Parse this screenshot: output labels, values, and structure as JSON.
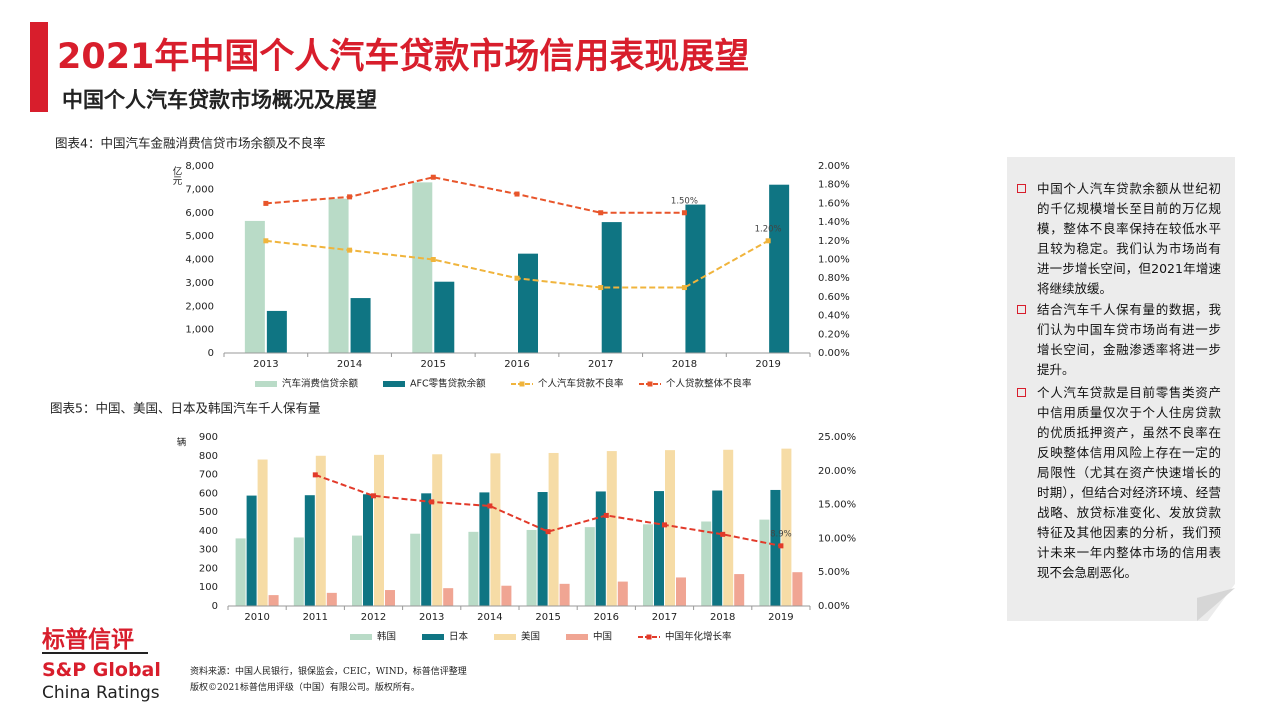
{
  "header": {
    "title": "2021年中国个人汽车贷款市场信用表现展望",
    "subtitle": "中国个人汽车贷款市场概况及展望"
  },
  "chart_data": [
    {
      "type": "bar",
      "title": "图表4：中国汽车金融消费信贷市场余额及不良率",
      "y_label": "亿元",
      "categories": [
        "2013",
        "2014",
        "2015",
        "2016",
        "2017",
        "2018",
        "2019"
      ],
      "series": [
        {
          "name": "汽车消费信贷余额",
          "type": "bar",
          "color": "#b9dbc7",
          "values": [
            5650,
            6600,
            7300,
            null,
            null,
            null,
            null
          ]
        },
        {
          "name": "AFC零售贷款余额",
          "type": "bar",
          "color": "#0f7583",
          "values": [
            1800,
            2350,
            3050,
            4250,
            5600,
            6350,
            7200
          ]
        },
        {
          "name": "个人汽车贷款不良率",
          "type": "line",
          "axis": "y2",
          "dashed": true,
          "color": "#f0b43c",
          "values": [
            1.2,
            1.1,
            1.0,
            0.8,
            0.7,
            0.7,
            1.2
          ],
          "value_labels": [
            null,
            null,
            null,
            null,
            null,
            null,
            "1.20%"
          ]
        },
        {
          "name": "个人贷款整体不良率",
          "type": "line",
          "axis": "y2",
          "dashed": true,
          "color": "#e8552b",
          "values": [
            1.6,
            1.67,
            1.88,
            1.7,
            1.5,
            1.5,
            null
          ],
          "value_labels": [
            null,
            null,
            null,
            null,
            null,
            "1.50%",
            null
          ]
        }
      ],
      "ylim": [
        0,
        8000
      ],
      "yticks": [
        0,
        {
          "value": 1000,
          "label": "1,000"
        },
        {
          "value": 2000,
          "label": "2,000"
        },
        {
          "value": 3000,
          "label": "3,000"
        },
        {
          "value": 4000,
          "label": "4,000"
        },
        {
          "value": 5000,
          "label": "5,000"
        },
        {
          "value": 6000,
          "label": "6,000"
        },
        {
          "value": 7000,
          "label": "7,000"
        },
        {
          "value": 8000,
          "label": "8,000"
        }
      ],
      "y2lim": [
        0,
        2
      ],
      "y2ticks": [
        {
          "value": 0,
          "label": "0.00%"
        },
        {
          "value": 0.2,
          "label": "0.20%"
        },
        {
          "value": 0.4,
          "label": "0.40%"
        },
        {
          "value": 0.6,
          "label": "0.60%"
        },
        {
          "value": 0.8,
          "label": "0.80%"
        },
        {
          "value": 1.0,
          "label": "1.00%"
        },
        {
          "value": 1.2,
          "label": "1.20%"
        },
        {
          "value": 1.4,
          "label": "1.40%"
        },
        {
          "value": 1.6,
          "label": "1.60%"
        },
        {
          "value": 1.8,
          "label": "1.80%"
        },
        {
          "value": 2.0,
          "label": "2.00%"
        }
      ]
    },
    {
      "type": "bar",
      "title": "图表5：中国、美国、日本及韩国汽车千人保有量",
      "y_label": "辆",
      "categories": [
        "2010",
        "2011",
        "2012",
        "2013",
        "2014",
        "2015",
        "2016",
        "2017",
        "2018",
        "2019"
      ],
      "series": [
        {
          "name": "韩国",
          "type": "bar",
          "color": "#b9dbc7",
          "values": [
            360,
            365,
            375,
            385,
            395,
            405,
            420,
            435,
            450,
            460
          ]
        },
        {
          "name": "日本",
          "type": "bar",
          "color": "#0f7583",
          "values": [
            588,
            590,
            595,
            600,
            605,
            607,
            610,
            612,
            615,
            618
          ]
        },
        {
          "name": "美国",
          "type": "bar",
          "color": "#f6dca6",
          "values": [
            780,
            800,
            805,
            808,
            813,
            815,
            825,
            830,
            832,
            838
          ]
        },
        {
          "name": "中国",
          "type": "bar",
          "color": "#f0a593",
          "values": [
            58,
            70,
            85,
            95,
            108,
            118,
            130,
            152,
            170,
            180
          ]
        },
        {
          "name": "中国年化增长率",
          "type": "line",
          "axis": "y2",
          "dashed": true,
          "color": "#e23a2a",
          "values": [
            null,
            19.4,
            16.3,
            15.4,
            14.8,
            11.0,
            13.4,
            12.0,
            10.6,
            8.9
          ],
          "value_labels": [
            null,
            null,
            null,
            null,
            null,
            null,
            null,
            null,
            null,
            "8.9%"
          ]
        }
      ],
      "ylim": [
        0,
        900
      ],
      "yticks": [
        0,
        100,
        200,
        300,
        400,
        500,
        600,
        700,
        800,
        900
      ],
      "y2lim": [
        0,
        25
      ],
      "y2ticks": [
        {
          "value": 0,
          "label": "0.00%"
        },
        {
          "value": 5,
          "label": "5.00%"
        },
        {
          "value": 10,
          "label": "10.00%"
        },
        {
          "value": 15,
          "label": "15.00%"
        },
        {
          "value": 20,
          "label": "20.00%"
        },
        {
          "value": 25,
          "label": "25.00%"
        }
      ]
    }
  ],
  "sidebar": {
    "bullets": [
      "中国个人汽车贷款余额从世纪初的千亿规模增长至目前的万亿规模，整体不良率保持在较低水平且较为稳定。我们认为市场尚有进一步增长空间，但2021年增速将继续放缓。",
      "结合汽车千人保有量的数据，我们认为中国车贷市场尚有进一步增长空间，金融渗透率将进一步提升。",
      "个人汽车贷款是目前零售类资产中信用质量仅次于个人住房贷款的优质抵押资产，虽然不良率在反映整体信用风险上存在一定的局限性（尤其在资产快速增长的时期），但结合对经济环境、经营战略、放贷标准变化、发放贷款特征及其他因素的分析，我们预计未来一年内整体市场的信用表现不会急剧恶化。"
    ]
  },
  "logo": {
    "name": "标普信评",
    "brand": "S&P Global",
    "division": "China Ratings"
  },
  "footer": {
    "source": "资料来源：中国人民银行，银保监会，CEIC，WIND，标普信评整理",
    "copyright": "版权©2021标普信用评级（中国）有限公司。版权所有。"
  }
}
